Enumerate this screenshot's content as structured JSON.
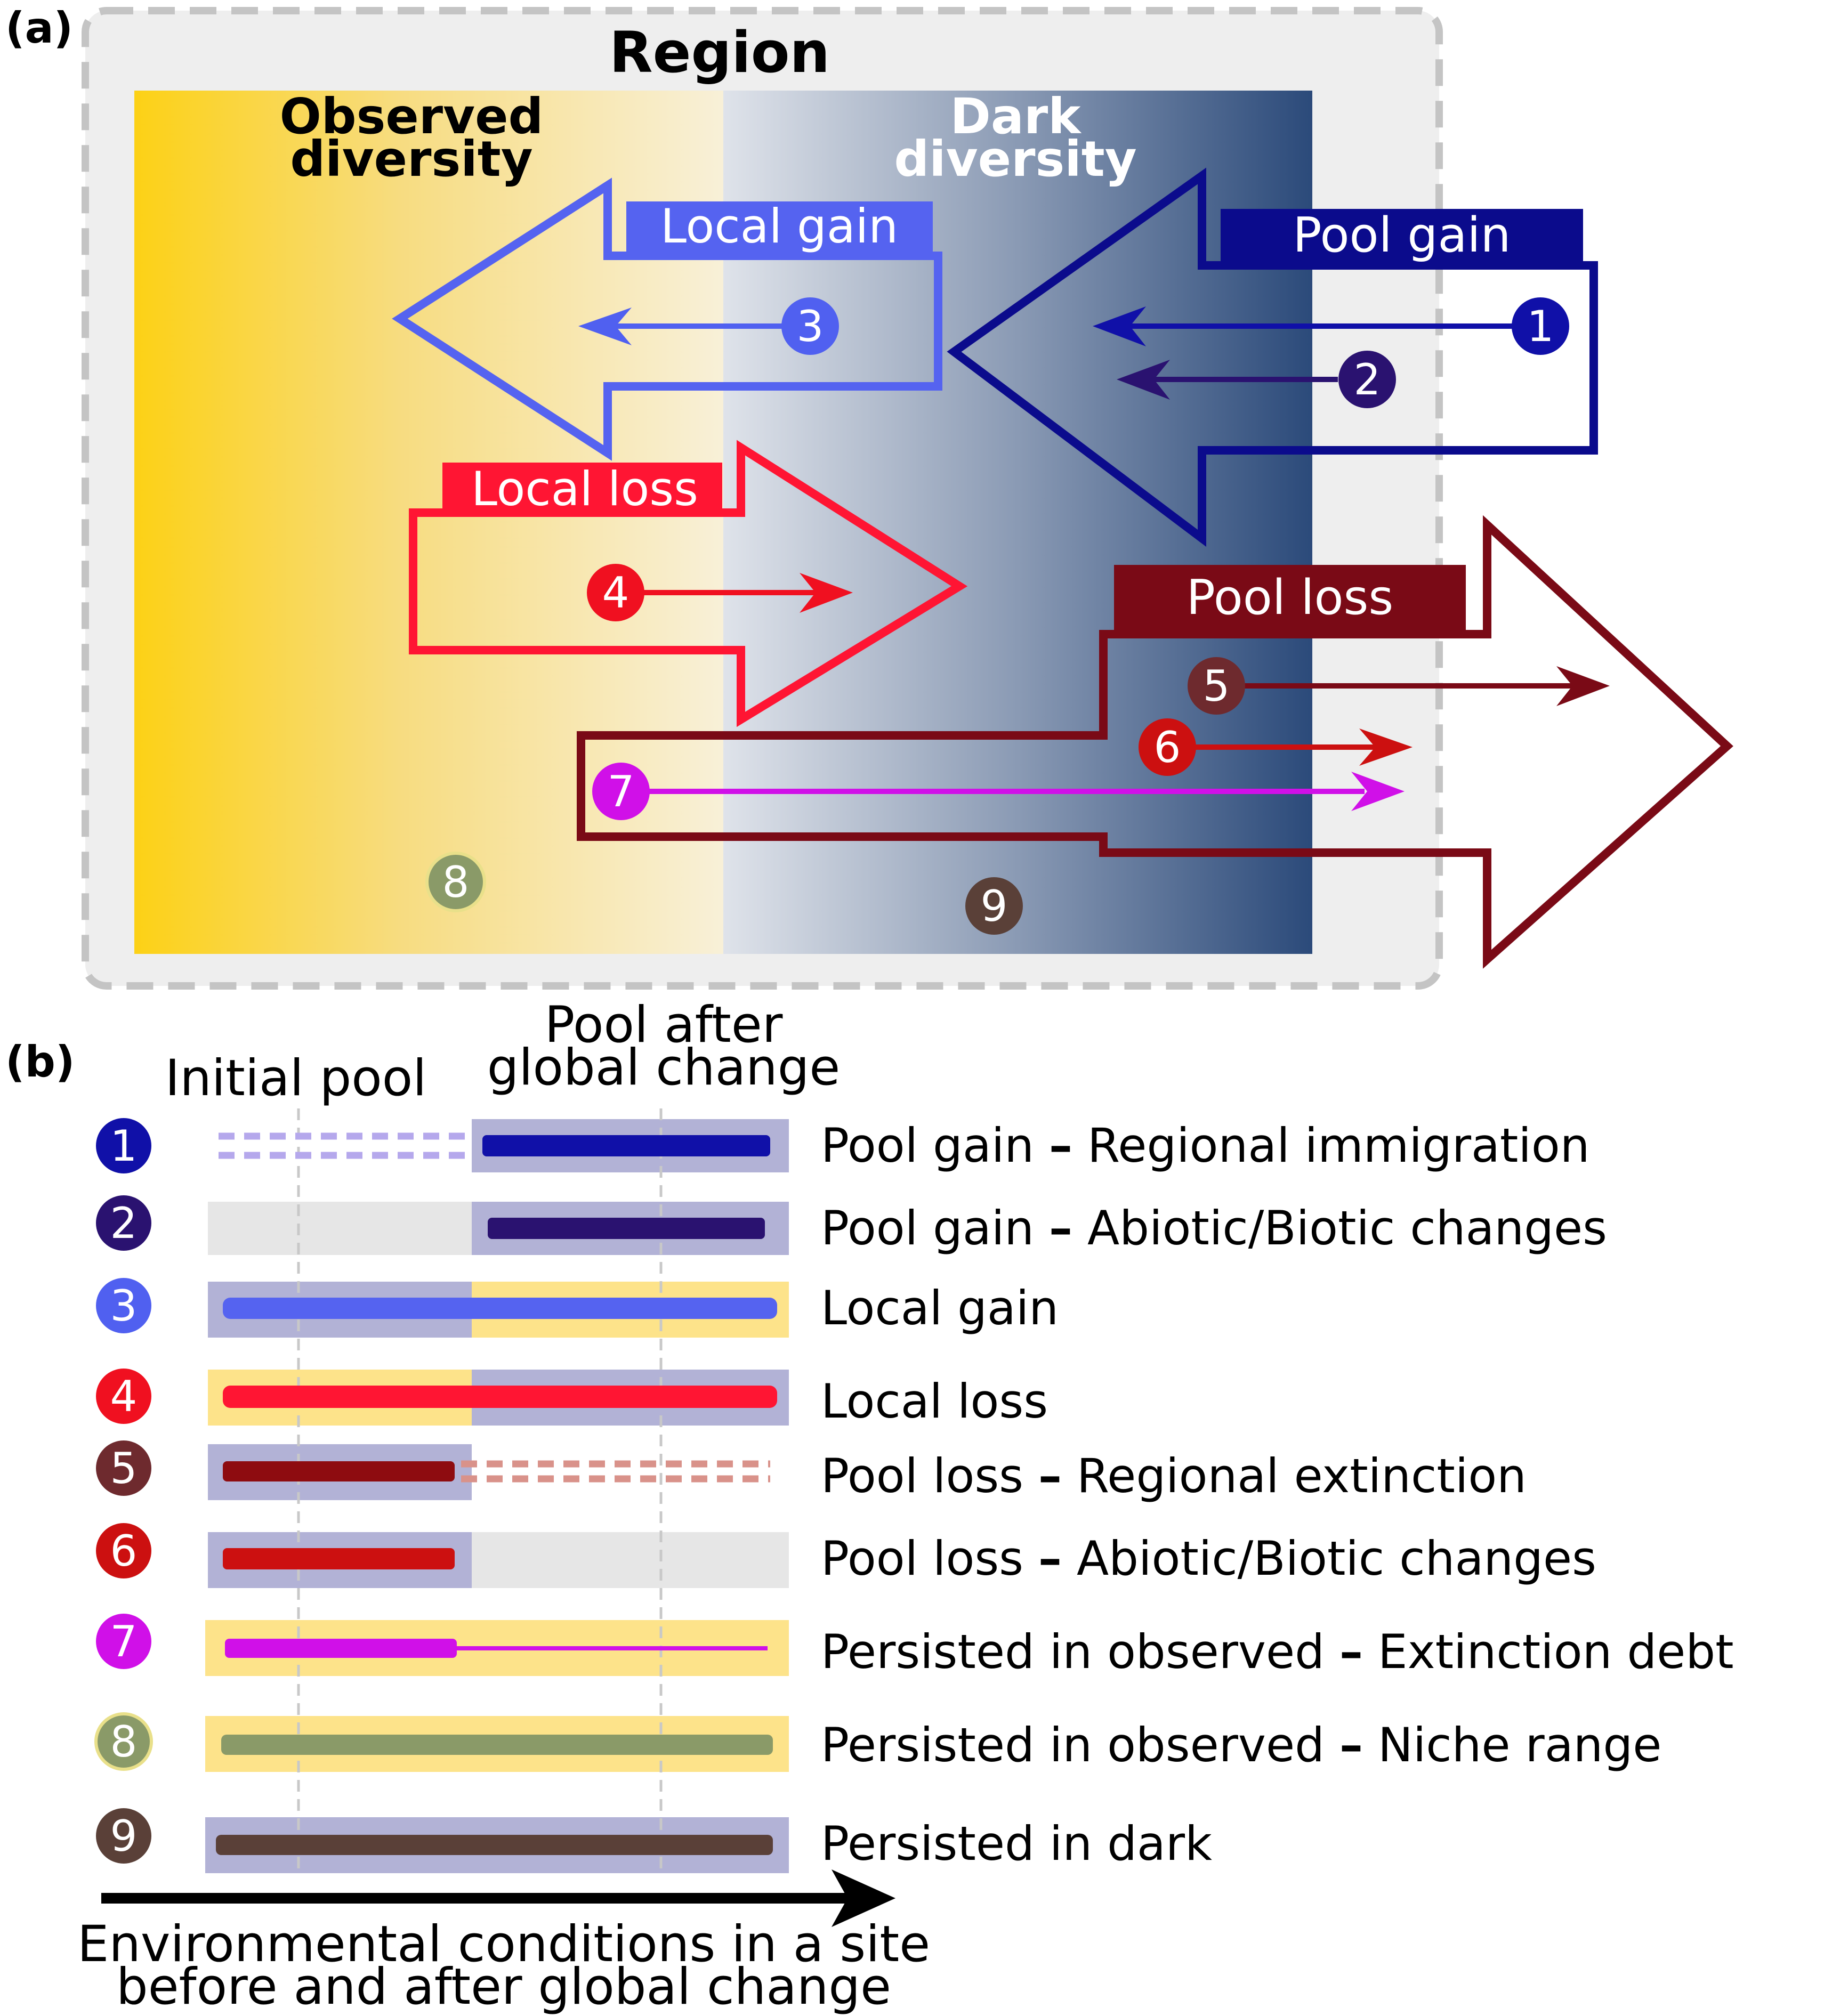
{
  "panel_a": {
    "label": "(a)",
    "title": "Region",
    "observed_label_line1": "Observed",
    "observed_label_line2": "diversity",
    "dark_label_line1": "Dark",
    "dark_label_line2": "diversity",
    "local_gain": "Local gain",
    "pool_gain": "Pool gain",
    "local_loss": "Local loss",
    "pool_loss": "Pool loss",
    "markers": [
      "1",
      "2",
      "3",
      "4",
      "5",
      "6",
      "7",
      "8",
      "9"
    ]
  },
  "panel_b": {
    "label": "(b)",
    "initial_pool": "Initial pool",
    "pool_after_line1": "Pool after",
    "pool_after_line2": "global change",
    "rows": [
      {
        "num": "1",
        "left": "Pool gain",
        "dash": "–",
        "right": "Regional immigration"
      },
      {
        "num": "2",
        "left": "Pool gain",
        "dash": "–",
        "right": "Abiotic/Biotic changes"
      },
      {
        "num": "3",
        "left": "Local gain",
        "dash": "",
        "right": ""
      },
      {
        "num": "4",
        "left": "Local loss",
        "dash": "",
        "right": ""
      },
      {
        "num": "5",
        "left": "Pool loss",
        "dash": "–",
        "right": "Regional extinction"
      },
      {
        "num": "6",
        "left": "Pool loss",
        "dash": "–",
        "right": "Abiotic/Biotic changes"
      },
      {
        "num": "7",
        "left": "Persisted in observed",
        "dash": "–",
        "right": "Extinction debt"
      },
      {
        "num": "8",
        "left": "Persisted in observed",
        "dash": "–",
        "right": "Niche range"
      },
      {
        "num": "9",
        "left": "Persisted in dark",
        "dash": "",
        "right": ""
      }
    ],
    "axis_label_line1": "Environmental conditions in a site",
    "axis_label_line2": "before and after global change"
  },
  "colors": {
    "observed": "#fcd116",
    "dark": "#2b4a7a",
    "local_gain": "#5563f0",
    "pool_gain": "#0b0b8c",
    "local_loss": "#ff1533",
    "pool_loss": "#7a0a16",
    "c1": "#1010a8",
    "c2": "#2a1270",
    "c3": "#5060f0",
    "c4": "#f01020",
    "c5": "#6e2a2e",
    "c6": "#cc1010",
    "c7": "#d010e8",
    "c8": "#8a9a68",
    "c9": "#5a4038"
  }
}
